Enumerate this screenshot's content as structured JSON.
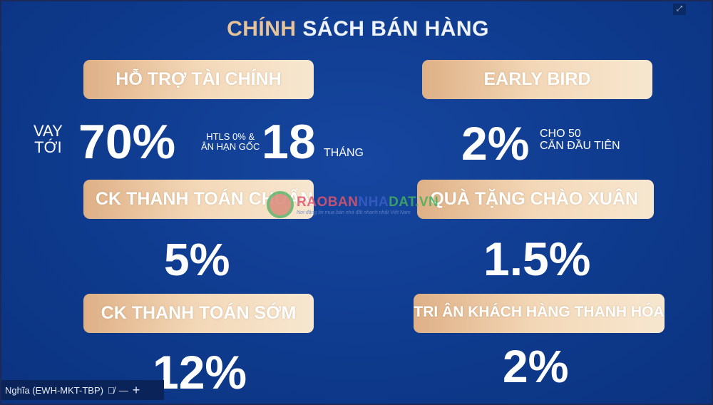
{
  "title": {
    "highlight": "CHÍNH",
    "rest": " SÁCH BÁN HÀNG"
  },
  "financial": {
    "label": "HỖ TRỢ TÀI CHÍNH",
    "loan_prefix_1": "VAY",
    "loan_prefix_2": "TỚI",
    "loan_value": "70%",
    "interest_1": "HTLS 0% &",
    "interest_2": "ÂN HẠN GỐC",
    "months_value": "18",
    "months_unit": "THÁNG"
  },
  "early_bird": {
    "label": "EARLY BIRD",
    "value": "2%",
    "note_1": "CHO 50",
    "note_2": "CĂN ĐẦU TIÊN"
  },
  "ck_chuan": {
    "label": "CK THANH TOÁN CHUẨN",
    "value": "5%"
  },
  "gift": {
    "label": "QUÀ TẶNG CHÀO XUÂN",
    "value": "1.5%"
  },
  "ck_som": {
    "label": "CK THANH TOÁN SỚM",
    "value": "12%"
  },
  "tri_an": {
    "label": "TRI ÂN KHÁCH HÀNG THANH HÓA",
    "value": "2%"
  },
  "watermark": {
    "brand_1": "RAOBAN",
    "brand_2": "NHA",
    "brand_3": "DAT.VN",
    "slogan": "Nơi đăng tin mua bán nhà đất nhanh nhất Việt Nam"
  },
  "participant": {
    "name": "Nghĩa (EWH-MKT-TBP)"
  },
  "colors": {
    "background": "#0e3a8c",
    "gold": "#e7c39a"
  }
}
